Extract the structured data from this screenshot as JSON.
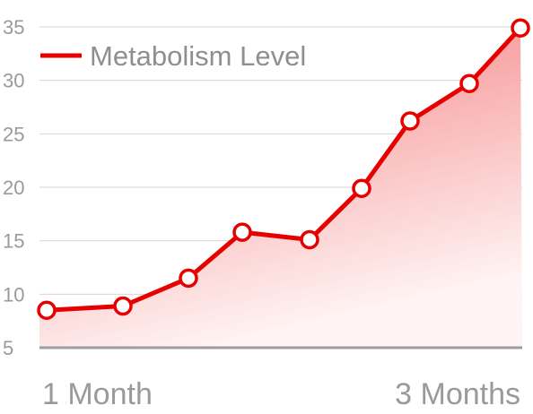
{
  "chart_data": {
    "type": "area",
    "title": "",
    "xlabel": "",
    "ylabel": "",
    "x_tick_labels": [
      "1 Month",
      "3 Months"
    ],
    "y_ticks": [
      5,
      10,
      15,
      20,
      25,
      30,
      35
    ],
    "ylim": [
      5,
      35
    ],
    "grid": true,
    "legend_position": "top-left",
    "series": [
      {
        "name": "Metabolism Level",
        "color": "#e60000",
        "values": [
          8.5,
          8.9,
          11.5,
          15.8,
          15.1,
          19.9,
          26.2,
          29.7,
          34.9
        ]
      }
    ]
  }
}
